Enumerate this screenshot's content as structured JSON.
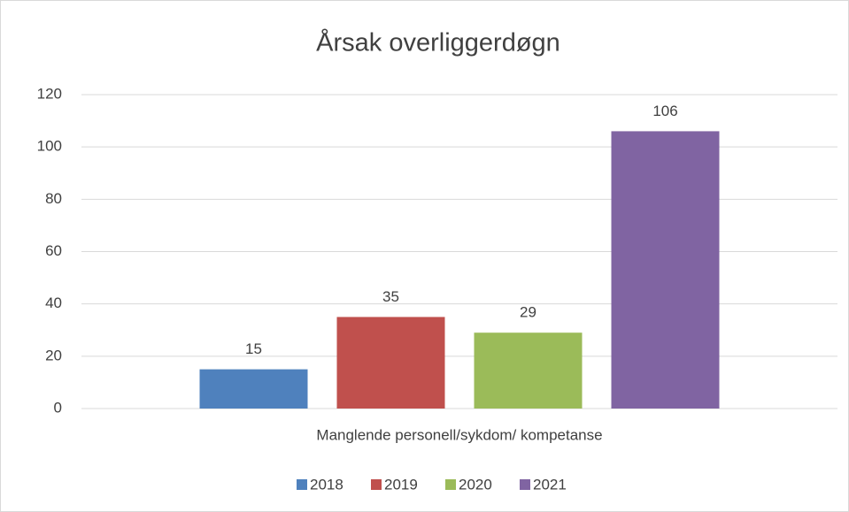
{
  "chart_data": {
    "type": "bar",
    "title": "Årsak overliggerdøgn",
    "categories": [
      "Manglende personell/sykdom/ kompetanse"
    ],
    "series": [
      {
        "name": "2018",
        "color": "#4f81bd",
        "values": [
          15
        ]
      },
      {
        "name": "2019",
        "color": "#c0504d",
        "values": [
          35
        ]
      },
      {
        "name": "2020",
        "color": "#9bbb59",
        "values": [
          29
        ]
      },
      {
        "name": "2021",
        "color": "#8064a2",
        "values": [
          106
        ]
      }
    ],
    "ylim": [
      0,
      120
    ],
    "yticks": [
      0,
      20,
      40,
      60,
      80,
      100,
      120
    ],
    "grid": true,
    "legend": "bottom"
  }
}
